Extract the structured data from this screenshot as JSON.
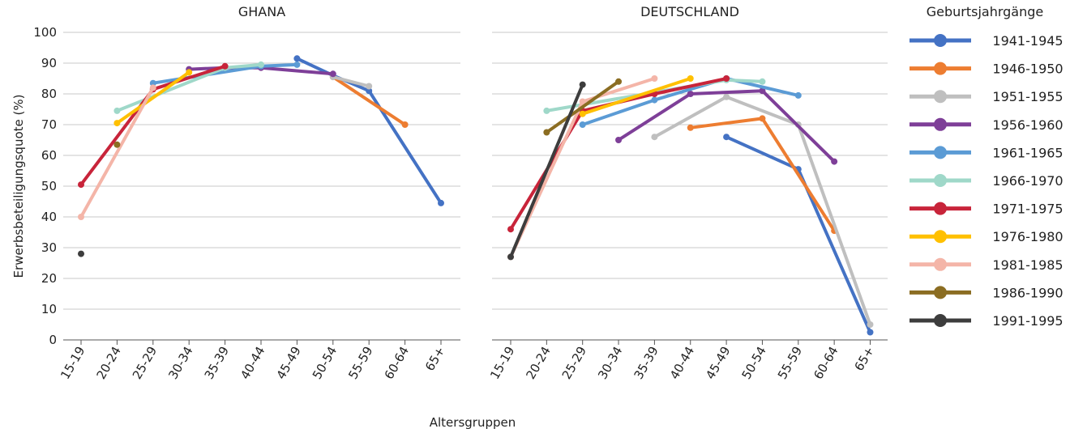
{
  "chart_data": {
    "type": "line",
    "ylabel": "Erwerbsbeteiligungsquote (%)",
    "xlabel": "Altersgruppen",
    "ylim": [
      0,
      100
    ],
    "yticks": [
      0,
      10,
      20,
      30,
      40,
      50,
      60,
      70,
      80,
      90,
      100
    ],
    "grid": true,
    "categories": [
      "15-19",
      "20-24",
      "25-29",
      "30-34",
      "35-39",
      "40-44",
      "45-49",
      "50-54",
      "55-59",
      "60-64",
      "65+"
    ],
    "legend": {
      "title": "Geburtsjahrgänge",
      "position": "right",
      "entries": [
        {
          "name": "1941-1945",
          "color": "#4472c4"
        },
        {
          "name": "1946-1950",
          "color": "#ed7d31"
        },
        {
          "name": "1951-1955",
          "color": "#bfbfbf"
        },
        {
          "name": "1956-1960",
          "color": "#7e3f98"
        },
        {
          "name": "1961-1965",
          "color": "#5b9bd5"
        },
        {
          "name": "1966-1970",
          "color": "#9fd8c9"
        },
        {
          "name": "1971-1975",
          "color": "#c8243a"
        },
        {
          "name": "1976-1980",
          "color": "#ffc000"
        },
        {
          "name": "1981-1985",
          "color": "#f4b5a8"
        },
        {
          "name": "1986-1990",
          "color": "#8b6d22"
        },
        {
          "name": "1991-1995",
          "color": "#3d3d3d"
        }
      ]
    },
    "panels": [
      {
        "title": "GHANA",
        "series": [
          {
            "name": "1941-1945",
            "values": [
              null,
              null,
              null,
              null,
              null,
              null,
              91.5,
              86,
              81,
              null,
              44.5
            ]
          },
          {
            "name": "1946-1950",
            "values": [
              null,
              null,
              null,
              null,
              null,
              null,
              null,
              85.5,
              null,
              70,
              null
            ]
          },
          {
            "name": "1951-1955",
            "values": [
              null,
              null,
              null,
              null,
              null,
              null,
              null,
              85.5,
              82.5,
              null,
              null
            ]
          },
          {
            "name": "1956-1960",
            "values": [
              null,
              null,
              null,
              88,
              88.5,
              88.5,
              null,
              86.5,
              null,
              null,
              null
            ]
          },
          {
            "name": "1961-1965",
            "values": [
              null,
              null,
              83.5,
              null,
              null,
              89,
              89.5,
              null,
              null,
              null,
              null
            ]
          },
          {
            "name": "1966-1970",
            "values": [
              null,
              74.5,
              null,
              null,
              88.5,
              89.5,
              null,
              null,
              null,
              null,
              null
            ]
          },
          {
            "name": "1971-1975",
            "values": [
              50.5,
              null,
              81.5,
              null,
              89,
              null,
              null,
              null,
              null,
              null,
              null
            ]
          },
          {
            "name": "1976-1980",
            "values": [
              null,
              70.5,
              null,
              87,
              null,
              null,
              null,
              null,
              null,
              null,
              null
            ]
          },
          {
            "name": "1981-1985",
            "values": [
              40,
              null,
              82,
              null,
              null,
              null,
              null,
              null,
              null,
              null,
              null
            ]
          },
          {
            "name": "1986-1990",
            "values": [
              null,
              63.5,
              null,
              null,
              null,
              null,
              null,
              null,
              null,
              null,
              null
            ]
          },
          {
            "name": "1991-1995",
            "values": [
              28,
              null,
              null,
              null,
              null,
              null,
              null,
              null,
              null,
              null,
              null
            ]
          }
        ]
      },
      {
        "title": "DEUTSCHLAND",
        "series": [
          {
            "name": "1941-1945",
            "values": [
              null,
              null,
              null,
              null,
              null,
              null,
              66,
              null,
              55.5,
              null,
              2.5
            ]
          },
          {
            "name": "1946-1950",
            "values": [
              null,
              null,
              null,
              null,
              null,
              69,
              null,
              72,
              null,
              35.5,
              null
            ]
          },
          {
            "name": "1951-1955",
            "values": [
              null,
              null,
              null,
              null,
              66,
              null,
              79,
              null,
              70,
              null,
              5
            ]
          },
          {
            "name": "1956-1960",
            "values": [
              null,
              null,
              null,
              65,
              null,
              80,
              null,
              81,
              null,
              58,
              null
            ]
          },
          {
            "name": "1961-1965",
            "values": [
              null,
              null,
              70,
              null,
              78,
              null,
              85,
              null,
              79.5,
              null,
              null
            ]
          },
          {
            "name": "1966-1970",
            "values": [
              null,
              74.5,
              null,
              null,
              null,
              null,
              84.5,
              84,
              null,
              null,
              null
            ]
          },
          {
            "name": "1971-1975",
            "values": [
              36,
              null,
              74.5,
              null,
              80,
              null,
              85,
              null,
              null,
              null,
              null
            ]
          },
          {
            "name": "1976-1980",
            "values": [
              null,
              null,
              73.5,
              null,
              null,
              85,
              null,
              null,
              null,
              null,
              null
            ]
          },
          {
            "name": "1981-1985",
            "values": [
              27,
              null,
              77.5,
              null,
              85,
              null,
              null,
              null,
              null,
              null,
              null
            ]
          },
          {
            "name": "1986-1990",
            "values": [
              null,
              67.5,
              null,
              84,
              null,
              null,
              null,
              null,
              null,
              null,
              null
            ]
          },
          {
            "name": "1991-1995",
            "values": [
              27,
              null,
              83,
              null,
              null,
              null,
              null,
              null,
              null,
              null,
              null
            ]
          }
        ]
      }
    ]
  }
}
